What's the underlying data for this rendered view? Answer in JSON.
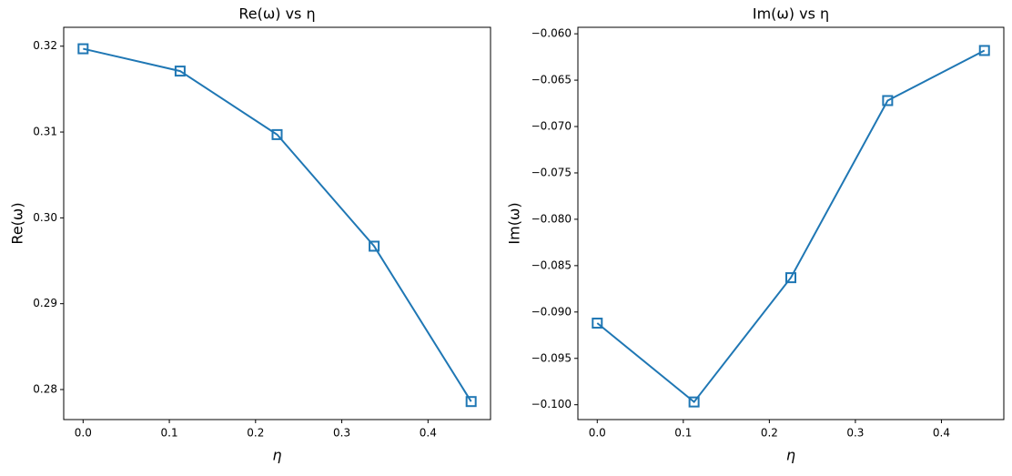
{
  "chart_data": [
    {
      "type": "line",
      "title": "Re(ω) vs η",
      "x_label": "η",
      "y_label": "Re(ω)",
      "x": [
        0,
        0.1125,
        0.225,
        0.3375,
        0.45
      ],
      "series": [
        {
          "name": "Re(ω)",
          "color": "#1f77b4",
          "values": [
            0.3197,
            0.3171,
            0.3097,
            0.2967,
            0.2786
          ]
        }
      ],
      "marker": "square",
      "xlim": [
        -0.0225,
        0.4725
      ],
      "xticks": [
        {
          "value": 0,
          "label": "0.0"
        },
        0.1,
        0.2,
        0.3,
        0.4
      ],
      "ylim": [
        0.2765,
        0.3222
      ],
      "yticks": [
        0.28,
        0.29,
        {
          "value": 0.3,
          "label": "0.30"
        },
        0.31,
        0.32
      ]
    },
    {
      "type": "line",
      "title": "Im(ω) vs η",
      "x_label": "η",
      "y_label": "Im(ω)",
      "x": [
        0,
        0.1125,
        0.225,
        0.3375,
        0.45
      ],
      "series": [
        {
          "name": "Im(ω)",
          "color": "#1f77b4",
          "values": [
            -0.0912,
            -0.0997,
            -0.0863,
            -0.0672,
            -0.0618
          ]
        }
      ],
      "marker": "square",
      "xlim": [
        -0.0225,
        0.4725
      ],
      "xticks": [
        {
          "value": 0,
          "label": "0.0"
        },
        0.1,
        0.2,
        0.3,
        0.4
      ],
      "ylim": [
        -0.1016,
        -0.0593
      ],
      "yticks": [
        {
          "value": -0.1,
          "label": "−0.100"
        },
        {
          "value": -0.095,
          "label": "−0.095"
        },
        {
          "value": -0.09,
          "label": "−0.090"
        },
        {
          "value": -0.085,
          "label": "−0.085"
        },
        {
          "value": -0.08,
          "label": "−0.080"
        },
        {
          "value": -0.075,
          "label": "−0.075"
        },
        {
          "value": -0.07,
          "label": "−0.070"
        },
        {
          "value": -0.065,
          "label": "−0.065"
        },
        {
          "value": -0.06,
          "label": "−0.060"
        }
      ]
    }
  ]
}
